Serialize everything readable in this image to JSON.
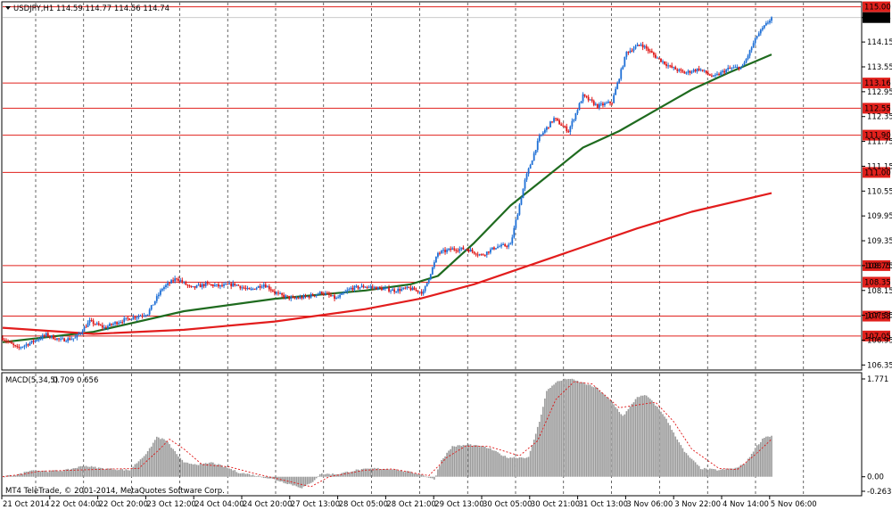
{
  "window": {
    "symbol_label": "USDJPY,H1",
    "ohlc_text": "114.59 114.77 114.56 114.74",
    "macd_label": "MACD(5,34,5)",
    "macd_values_text": "0.709 0.656",
    "copyright": "MT4 TeleTrade, © 2001-2014, MetaQuotes Software Corp."
  },
  "colors": {
    "bull": "#1e6fd6",
    "bear": "#e01515",
    "ma_fast": "#1f6b1f",
    "ma_slow": "#e21d1d",
    "level_line": "#e0201c",
    "histogram": "#9a9a9a",
    "signal": "#e01515",
    "grid": "#000000"
  },
  "chart_data": [
    {
      "type": "candlestick",
      "title": "USDJPY,H1",
      "y_ticks": [
        "106.35",
        "106.95",
        "107.55",
        "108.15",
        "108.75",
        "109.35",
        "109.95",
        "110.55",
        "111.15",
        "111.75",
        "112.35",
        "112.95",
        "113.55",
        "114.15",
        "114.74"
      ],
      "ylim": [
        106.25,
        115.1
      ],
      "x_ticks": [
        "21 Oct 2014",
        "22 Oct 04:00",
        "22 Oct 20:00",
        "23 Oct 12:00",
        "24 Oct 04:00",
        "24 Oct 20:00",
        "27 Oct 13:00",
        "28 Oct 05:00",
        "28 Oct 21:00",
        "29 Oct 13:00",
        "30 Oct 05:00",
        "30 Oct 21:00",
        "31 Oct 13:00",
        "3 Nov 06:00",
        "3 Nov 22:00",
        "4 Nov 14:00",
        "5 Nov 06:00"
      ],
      "current_price": "114.74",
      "levels": [
        "115.00",
        "113.16",
        "112.55",
        "111.90",
        "111.00",
        "108.75",
        "108.35",
        "107.53",
        "107.05"
      ],
      "close_path": [
        [
          0,
          107.0
        ],
        [
          8,
          106.75
        ],
        [
          16,
          106.9
        ],
        [
          24,
          107.08
        ],
        [
          32,
          106.95
        ],
        [
          40,
          107.0
        ],
        [
          48,
          107.4
        ],
        [
          56,
          107.25
        ],
        [
          64,
          107.4
        ],
        [
          72,
          107.5
        ],
        [
          80,
          107.6
        ],
        [
          88,
          108.2
        ],
        [
          96,
          108.45
        ],
        [
          104,
          108.2
        ],
        [
          112,
          108.3
        ],
        [
          120,
          108.25
        ],
        [
          128,
          108.3
        ],
        [
          136,
          108.15
        ],
        [
          144,
          108.3
        ],
        [
          152,
          108.05
        ],
        [
          160,
          107.95
        ],
        [
          168,
          108.0
        ],
        [
          176,
          108.1
        ],
        [
          184,
          107.95
        ],
        [
          192,
          108.2
        ],
        [
          200,
          108.25
        ],
        [
          208,
          108.2
        ],
        [
          216,
          108.15
        ],
        [
          224,
          108.2
        ],
        [
          232,
          108.1
        ],
        [
          240,
          109.05
        ],
        [
          248,
          109.15
        ],
        [
          256,
          109.15
        ],
        [
          264,
          109.0
        ],
        [
          272,
          109.2
        ],
        [
          280,
          109.25
        ],
        [
          288,
          110.8
        ],
        [
          296,
          111.85
        ],
        [
          304,
          112.3
        ],
        [
          312,
          112.0
        ],
        [
          320,
          112.85
        ],
        [
          328,
          112.6
        ],
        [
          336,
          112.7
        ],
        [
          344,
          113.9
        ],
        [
          352,
          114.1
        ],
        [
          360,
          113.8
        ],
        [
          368,
          113.55
        ],
        [
          376,
          113.4
        ],
        [
          384,
          113.5
        ],
        [
          392,
          113.3
        ],
        [
          400,
          113.5
        ],
        [
          408,
          113.55
        ],
        [
          416,
          114.3
        ],
        [
          424,
          114.74
        ]
      ],
      "series": [
        {
          "name": "MA fast",
          "values": [
            [
              0,
              106.9
            ],
            [
              50,
              107.15
            ],
            [
              100,
              107.65
            ],
            [
              150,
              107.95
            ],
            [
              200,
              108.15
            ],
            [
              225,
              108.3
            ],
            [
              240,
              108.5
            ],
            [
              260,
              109.3
            ],
            [
              280,
              110.2
            ],
            [
              300,
              110.9
            ],
            [
              320,
              111.6
            ],
            [
              340,
              112.0
            ],
            [
              360,
              112.5
            ],
            [
              380,
              113.0
            ],
            [
              400,
              113.4
            ],
            [
              424,
              113.85
            ]
          ]
        },
        {
          "name": "MA slow",
          "values": [
            [
              0,
              107.25
            ],
            [
              50,
              107.1
            ],
            [
              100,
              107.2
            ],
            [
              150,
              107.4
            ],
            [
              200,
              107.7
            ],
            [
              230,
              107.95
            ],
            [
              260,
              108.3
            ],
            [
              290,
              108.75
            ],
            [
              320,
              109.2
            ],
            [
              350,
              109.65
            ],
            [
              380,
              110.05
            ],
            [
              424,
              110.5
            ]
          ]
        }
      ]
    },
    {
      "type": "bar",
      "title": "MACD(5,34,5)",
      "y_ticks": [
        "1.771",
        "0.00",
        "-0.263"
      ],
      "ylim": [
        -0.263,
        1.771
      ],
      "main_profile": [
        [
          0,
          0.0
        ],
        [
          10,
          0.05
        ],
        [
          15,
          0.12
        ],
        [
          25,
          0.1
        ],
        [
          35,
          0.12
        ],
        [
          45,
          0.2
        ],
        [
          55,
          0.15
        ],
        [
          70,
          0.12
        ],
        [
          80,
          0.45
        ],
        [
          85,
          0.72
        ],
        [
          90,
          0.66
        ],
        [
          100,
          0.25
        ],
        [
          110,
          0.22
        ],
        [
          115,
          0.26
        ],
        [
          125,
          0.15
        ],
        [
          130,
          0.08
        ],
        [
          140,
          0.02
        ],
        [
          150,
          -0.05
        ],
        [
          160,
          -0.15
        ],
        [
          165,
          -0.2
        ],
        [
          170,
          -0.12
        ],
        [
          175,
          0.05
        ],
        [
          185,
          0.05
        ],
        [
          195,
          0.12
        ],
        [
          205,
          0.15
        ],
        [
          215,
          0.14
        ],
        [
          230,
          0.05
        ],
        [
          238,
          -0.05
        ],
        [
          242,
          0.3
        ],
        [
          248,
          0.55
        ],
        [
          258,
          0.58
        ],
        [
          268,
          0.52
        ],
        [
          278,
          0.35
        ],
        [
          290,
          0.35
        ],
        [
          296,
          1.0
        ],
        [
          300,
          1.55
        ],
        [
          305,
          1.71
        ],
        [
          312,
          1.78
        ],
        [
          320,
          1.7
        ],
        [
          328,
          1.6
        ],
        [
          336,
          1.35
        ],
        [
          342,
          1.1
        ],
        [
          345,
          1.22
        ],
        [
          350,
          1.45
        ],
        [
          355,
          1.47
        ],
        [
          360,
          1.3
        ],
        [
          365,
          1.1
        ],
        [
          370,
          0.8
        ],
        [
          376,
          0.45
        ],
        [
          385,
          0.15
        ],
        [
          395,
          0.12
        ],
        [
          405,
          0.16
        ],
        [
          410,
          0.26
        ],
        [
          415,
          0.52
        ],
        [
          420,
          0.72
        ],
        [
          424,
          0.74
        ]
      ],
      "signal_profile": [
        [
          0,
          0.0
        ],
        [
          12,
          0.05
        ],
        [
          20,
          0.1
        ],
        [
          40,
          0.12
        ],
        [
          60,
          0.14
        ],
        [
          75,
          0.15
        ],
        [
          85,
          0.45
        ],
        [
          92,
          0.68
        ],
        [
          100,
          0.5
        ],
        [
          110,
          0.22
        ],
        [
          125,
          0.18
        ],
        [
          140,
          0.05
        ],
        [
          160,
          -0.1
        ],
        [
          170,
          -0.18
        ],
        [
          180,
          0.0
        ],
        [
          200,
          0.12
        ],
        [
          215,
          0.14
        ],
        [
          235,
          0.02
        ],
        [
          245,
          0.35
        ],
        [
          255,
          0.55
        ],
        [
          268,
          0.55
        ],
        [
          285,
          0.38
        ],
        [
          295,
          0.65
        ],
        [
          305,
          1.4
        ],
        [
          315,
          1.72
        ],
        [
          325,
          1.68
        ],
        [
          340,
          1.25
        ],
        [
          350,
          1.3
        ],
        [
          360,
          1.35
        ],
        [
          370,
          1.0
        ],
        [
          380,
          0.5
        ],
        [
          395,
          0.15
        ],
        [
          405,
          0.13
        ],
        [
          415,
          0.4
        ],
        [
          424,
          0.68
        ]
      ]
    }
  ]
}
